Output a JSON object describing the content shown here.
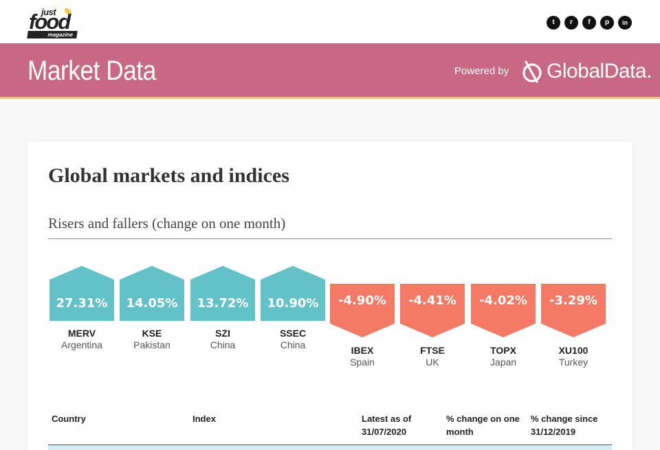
{
  "brand": {
    "just": "just",
    "food": "food",
    "magazine": "magazine"
  },
  "social": [
    {
      "icon": "twitter-icon",
      "glyph": "t"
    },
    {
      "icon": "reddit-icon",
      "glyph": "r"
    },
    {
      "icon": "facebook-icon",
      "glyph": "f"
    },
    {
      "icon": "pinterest-icon",
      "glyph": "p"
    },
    {
      "icon": "linkedin-icon",
      "glyph": "in"
    }
  ],
  "banner": {
    "title": "Market Data",
    "powered_by": "Powered by",
    "partner": "GlobalData.",
    "bg_color": "#c96884",
    "accent_color": "#f2c94c"
  },
  "section": {
    "heading": "Global markets and indices",
    "subtitle": "Risers and fallers (change on one month)"
  },
  "risers": [
    {
      "value": "27.31%",
      "code": "MERV",
      "country": "Argentina"
    },
    {
      "value": "14.05%",
      "code": "KSE",
      "country": "Pakistan"
    },
    {
      "value": "13.72%",
      "code": "SZI",
      "country": "China"
    },
    {
      "value": "10.90%",
      "code": "SSEC",
      "country": "China"
    }
  ],
  "fallers": [
    {
      "value": "-4.90%",
      "code": "IBEX",
      "country": "Spain"
    },
    {
      "value": "-4.41%",
      "code": "FTSE",
      "country": "UK"
    },
    {
      "value": "-4.02%",
      "code": "TOPX",
      "country": "Japan"
    },
    {
      "value": "-3.29%",
      "code": "XU100",
      "country": "Turkey"
    }
  ],
  "colors": {
    "riser": "#62c2c8",
    "faller": "#f47a65"
  },
  "table": {
    "headers": {
      "country": "Country",
      "index": "Index",
      "latest_l1": "Latest as of",
      "latest_l2": "31/07/2020",
      "change_month_l1": "% change on one",
      "change_month_l2": "month",
      "change_since_l1": "% change since",
      "change_since_l2": "31/12/2019"
    }
  }
}
